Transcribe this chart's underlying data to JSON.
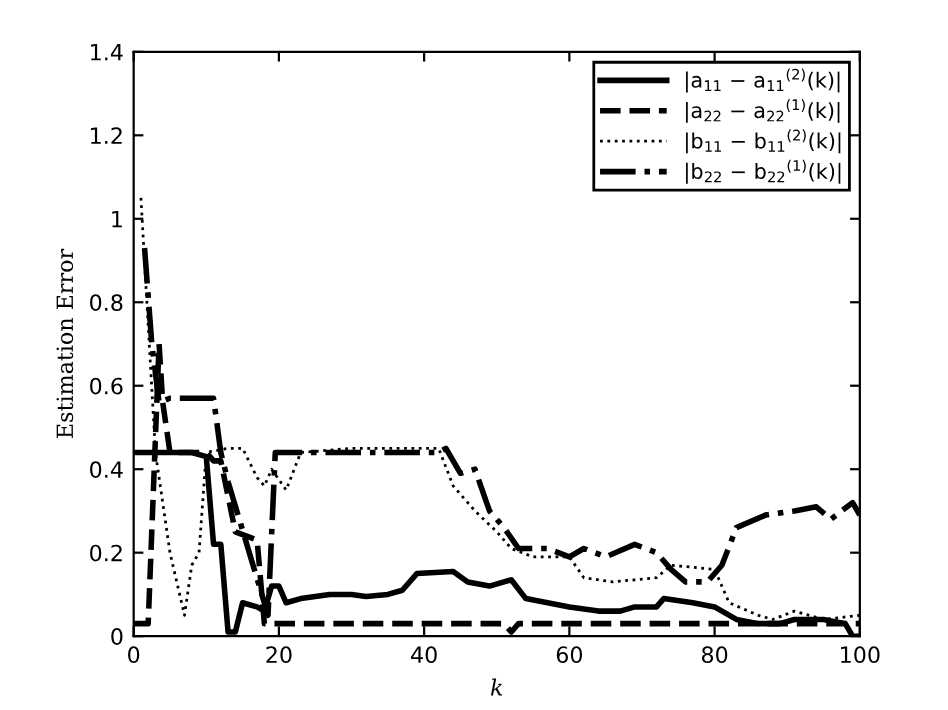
{
  "chart_data": {
    "type": "line",
    "xlabel": "k",
    "ylabel": "Estimation Error",
    "xlim": [
      0,
      100
    ],
    "ylim": [
      0,
      1.4
    ],
    "xticks": [
      0,
      20,
      40,
      60,
      80,
      100
    ],
    "yticks": [
      0,
      0.2,
      0.4,
      0.6,
      0.8,
      1,
      1.2,
      1.4
    ],
    "grid": false,
    "legend": "top right",
    "marker": "none",
    "series": [
      {
        "name": "|a$_{11}$ − a$_{11}$$^{(2)}$(k)|",
        "color": "#000000",
        "line_style": "solid",
        "x": [
          0,
          8,
          10,
          11,
          12,
          13,
          14,
          15,
          17,
          18,
          19,
          20,
          21,
          23,
          27,
          30,
          32,
          35,
          37,
          39,
          44,
          46,
          49,
          52,
          54,
          57,
          60,
          64,
          67,
          69,
          72,
          73,
          77,
          80,
          83,
          86,
          89,
          91,
          95,
          98,
          99,
          100
        ],
        "values": [
          0.44,
          0.44,
          0.43,
          0.22,
          0.22,
          0.01,
          0.01,
          0.08,
          0.07,
          0.06,
          0.12,
          0.12,
          0.08,
          0.09,
          0.1,
          0.1,
          0.095,
          0.1,
          0.11,
          0.15,
          0.155,
          0.13,
          0.12,
          0.135,
          0.09,
          0.08,
          0.07,
          0.06,
          0.06,
          0.07,
          0.07,
          0.09,
          0.08,
          0.07,
          0.04,
          0.03,
          0.03,
          0.04,
          0.04,
          0.03,
          0.0,
          0.0
        ]
      },
      {
        "name": "|a$_{22}$ − a$_{22}$$^{(1)}$(k)|",
        "color": "#000000",
        "line_style": "dashed",
        "x": [
          0,
          2,
          3.5,
          4,
          5,
          10,
          11,
          12,
          14,
          17,
          18,
          19,
          51,
          52,
          53,
          100
        ],
        "values": [
          0.03,
          0.03,
          0.7,
          0.56,
          0.44,
          0.44,
          0.42,
          0.42,
          0.25,
          0.23,
          0.03,
          0.03,
          0.03,
          0.01,
          0.03,
          0.03
        ]
      },
      {
        "name": "|b$_{11}$ − b$_{11}$$^{(2)}$(k)|",
        "color": "#000000",
        "line_style": "dotted",
        "x": [
          1,
          3,
          5,
          7,
          8,
          9,
          10,
          13,
          15,
          17,
          18,
          19,
          21,
          23,
          30,
          42,
          44,
          47,
          50,
          52,
          55,
          60,
          62,
          66,
          72,
          74,
          80,
          82,
          86,
          88,
          91,
          95,
          100
        ],
        "values": [
          1.05,
          0.44,
          0.2,
          0.05,
          0.17,
          0.2,
          0.44,
          0.45,
          0.45,
          0.38,
          0.36,
          0.4,
          0.35,
          0.44,
          0.45,
          0.45,
          0.36,
          0.3,
          0.25,
          0.21,
          0.19,
          0.19,
          0.14,
          0.13,
          0.14,
          0.17,
          0.16,
          0.08,
          0.05,
          0.04,
          0.06,
          0.04,
          0.05
        ]
      },
      {
        "name": "|b$_{22}$ − b$_{22}$$^{(1)}$(k)|",
        "color": "#000000",
        "line_style": "dashdot",
        "x": [
          1.5,
          2.5,
          3.5,
          5,
          11,
          12,
          13,
          18.5,
          19.5,
          20,
          42,
          43,
          45,
          47,
          49,
          51,
          53,
          57,
          60,
          62,
          65,
          69,
          72,
          74,
          76,
          79,
          81,
          83,
          87,
          91,
          94,
          96,
          99,
          100
        ],
        "values": [
          0.93,
          0.7,
          0.56,
          0.57,
          0.57,
          0.44,
          0.37,
          0.05,
          0.44,
          0.44,
          0.44,
          0.45,
          0.39,
          0.4,
          0.3,
          0.26,
          0.21,
          0.21,
          0.19,
          0.21,
          0.19,
          0.22,
          0.2,
          0.16,
          0.13,
          0.13,
          0.17,
          0.26,
          0.29,
          0.3,
          0.31,
          0.28,
          0.32,
          0.29
        ]
      }
    ]
  }
}
